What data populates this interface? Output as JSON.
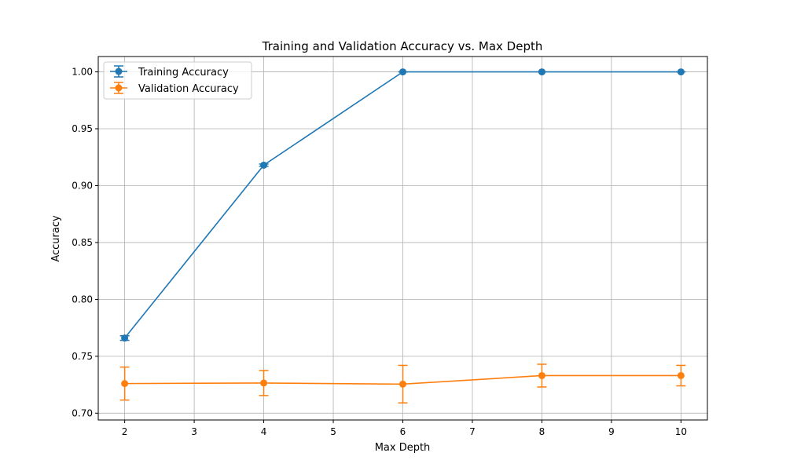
{
  "chart_data": {
    "type": "line",
    "title": "Training and Validation Accuracy vs. Max Depth",
    "xlabel": "Max Depth",
    "ylabel": "Accuracy",
    "x": [
      2,
      4,
      6,
      8,
      10
    ],
    "xlim": [
      1.62,
      10.38
    ],
    "ylim": [
      0.694,
      1.0135
    ],
    "xticks": [
      2,
      3,
      4,
      5,
      6,
      7,
      8,
      9,
      10
    ],
    "yticks": [
      "0.70",
      "0.75",
      "0.80",
      "0.85",
      "0.90",
      "0.95",
      "1.00"
    ],
    "grid": true,
    "legend_position": "top-left",
    "series": [
      {
        "name": "Training Accuracy",
        "color": "#1f77b4",
        "values": [
          0.766,
          0.918,
          1.0,
          1.0,
          1.0
        ],
        "errors": [
          0.002,
          0.001,
          0.0,
          0.0,
          0.0
        ]
      },
      {
        "name": "Validation Accuracy",
        "color": "#ff7f0e",
        "values": [
          0.726,
          0.7265,
          0.7255,
          0.733,
          0.733
        ],
        "errors": [
          0.0145,
          0.011,
          0.0165,
          0.01,
          0.009
        ]
      }
    ]
  }
}
